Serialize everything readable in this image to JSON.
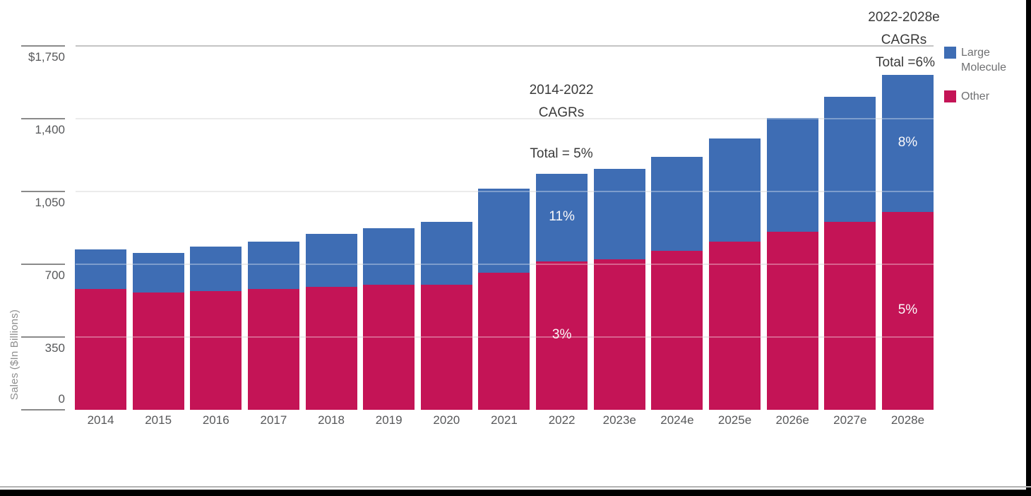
{
  "chart_data": {
    "type": "bar",
    "stacked": true,
    "ylabel": "Sales ($In Billions)",
    "ylim": [
      0,
      1750
    ],
    "yticks": [
      0,
      350,
      700,
      1050,
      1400,
      1750
    ],
    "ytick_labels": [
      "0",
      "350",
      "700",
      "1,050",
      "1,400",
      "$1,750"
    ],
    "grid": "horizontal",
    "legend_position": "top-right",
    "categories": [
      "2014",
      "2015",
      "2016",
      "2017",
      "2018",
      "2019",
      "2020",
      "2021",
      "2022",
      "2023e",
      "2024e",
      "2025e",
      "2026e",
      "2027e",
      "2028e"
    ],
    "series": [
      {
        "name": "Large Molecule",
        "color": "#3e6db4",
        "values": [
          190,
          190,
          215,
          230,
          255,
          275,
          305,
          405,
          420,
          435,
          450,
          495,
          550,
          600,
          660
        ]
      },
      {
        "name": "Other",
        "color": "#c41456",
        "values": [
          580,
          565,
          570,
          580,
          590,
          600,
          600,
          660,
          715,
          725,
          765,
          810,
          855,
          905,
          950
        ]
      }
    ],
    "totals": [
      770,
      755,
      785,
      810,
      845,
      875,
      905,
      1065,
      1135,
      1160,
      1215,
      1305,
      1405,
      1505,
      1610
    ],
    "bar_labels": [
      {
        "category": "2022",
        "series": "Large Molecule",
        "text": "11%"
      },
      {
        "category": "2022",
        "series": "Other",
        "text": "3%"
      },
      {
        "category": "2028e",
        "series": "Large Molecule",
        "text": "8%"
      },
      {
        "category": "2028e",
        "series": "Other",
        "text": "5%"
      }
    ],
    "annotations": [
      {
        "anchor_category": "2022",
        "lines": [
          "2014-2022",
          "CAGRs",
          "Total = 5%"
        ]
      },
      {
        "anchor_category": "2028e",
        "lines": [
          "2022-2028e",
          "CAGRs",
          "Total =6%"
        ]
      }
    ]
  }
}
